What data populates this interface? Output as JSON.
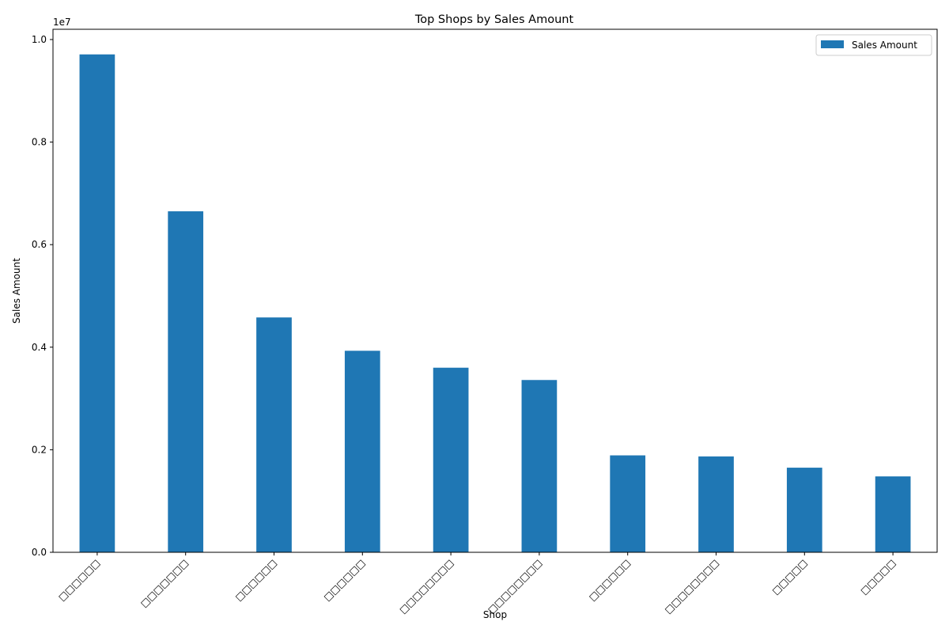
{
  "chart_data": {
    "type": "bar",
    "title": "Top Shops by Sales Amount",
    "xlabel": "Shop",
    "ylabel": "Sales Amount",
    "y_offset_text": "1e7",
    "categories": [
      "□□□□□□",
      "□□□□□□□",
      "□□□□□□",
      "□□□□□□",
      "□□□□□□□□",
      "□□□□□□□□",
      "□□□□□□",
      "□□□□□□□□",
      "□□□□□",
      "□□□□□"
    ],
    "series": [
      {
        "name": "Sales Amount",
        "color": "#1f77b4",
        "values": [
          9710000,
          6650000,
          4580000,
          3930000,
          3600000,
          3360000,
          1890000,
          1870000,
          1650000,
          1480000
        ]
      }
    ],
    "ylim": [
      0,
      10200000
    ],
    "yticks": [
      0,
      2000000,
      4000000,
      6000000,
      8000000,
      10000000
    ],
    "ytick_labels": [
      "0.0",
      "0.2",
      "0.4",
      "0.6",
      "0.8",
      "1.0"
    ],
    "grid": false,
    "legend_position": "top-right"
  }
}
